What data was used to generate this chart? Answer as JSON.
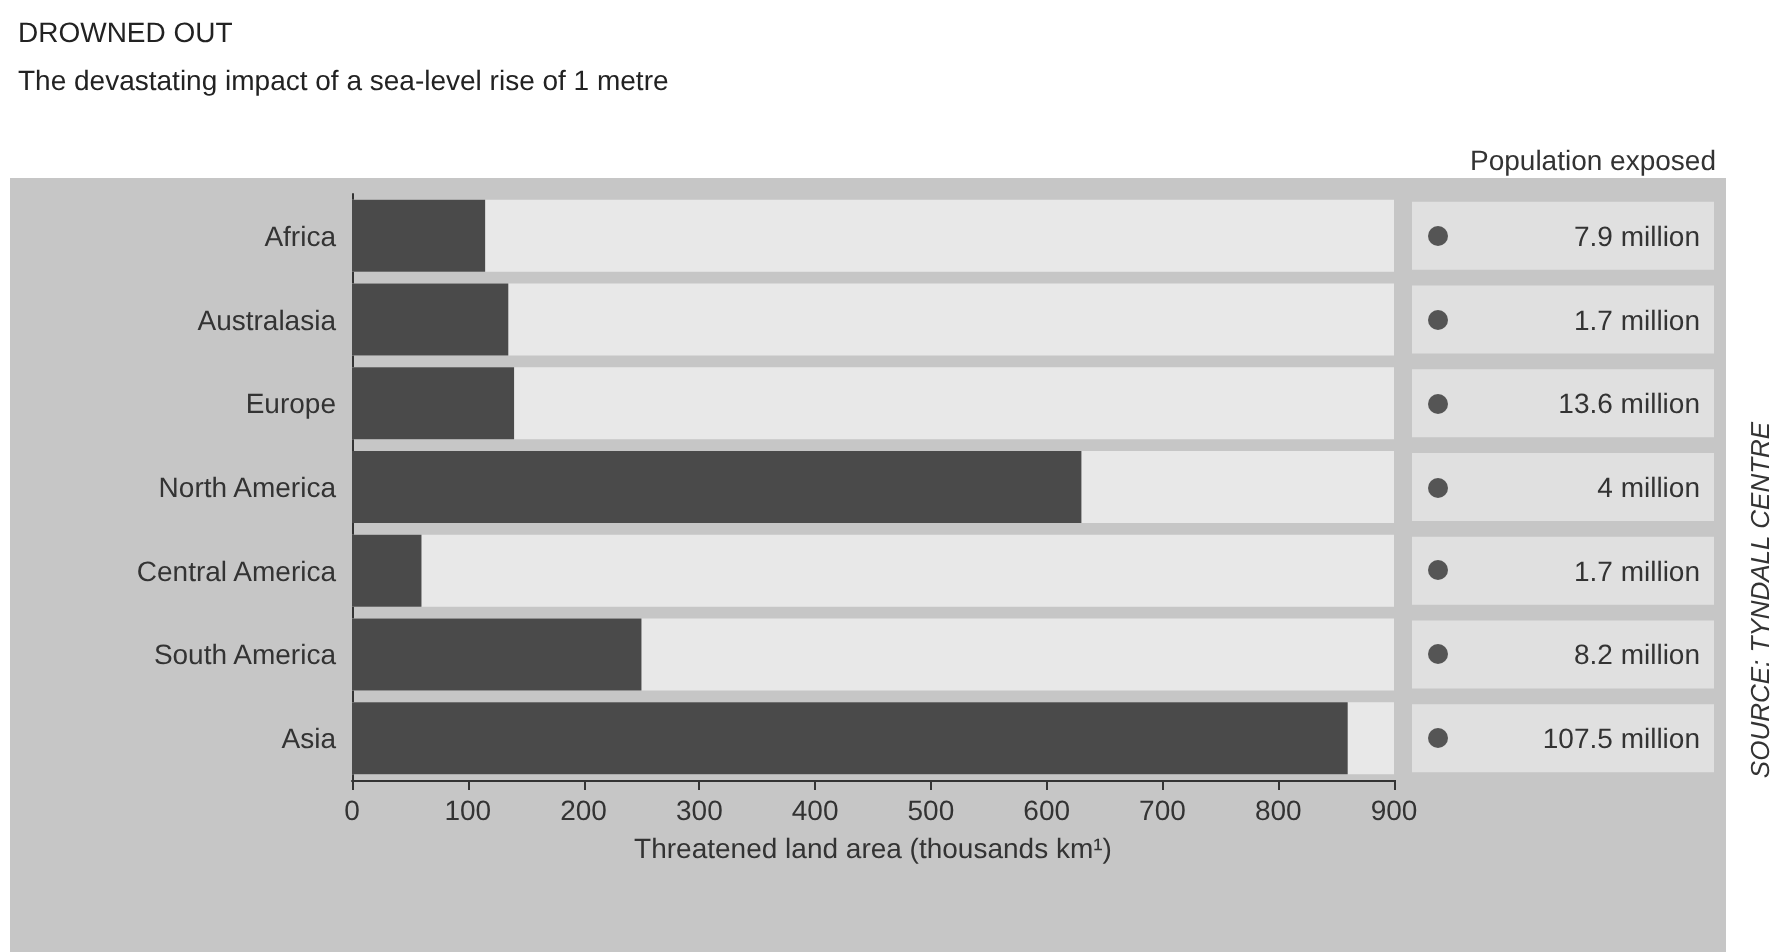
{
  "chart_data": {
    "type": "bar",
    "title": "DROWNED OUT",
    "subtitle": "The devastating impact of a sea-level rise of 1 metre",
    "xlabel": "Threatened land area (thousands km¹)",
    "categories": [
      "Africa",
      "Australasia",
      "Europe",
      "North America",
      "Central America",
      "South America",
      "Asia"
    ],
    "values": [
      115,
      135,
      140,
      630,
      60,
      250,
      860
    ],
    "color": "#4a4a4a",
    "orientation": "horizontal",
    "xlim": [
      0,
      900
    ],
    "xticks": [
      0,
      100,
      200,
      300,
      400,
      500,
      600,
      700,
      800,
      900
    ],
    "grid": false,
    "annotations": [
      "Population exposed",
      "SOURCE: TYNDALL CENTRE",
      "7.9 million",
      "1.7 million",
      "13.6 million",
      "4 million",
      "1.7 million",
      "8.2 million",
      "107.5 million"
    ]
  }
}
